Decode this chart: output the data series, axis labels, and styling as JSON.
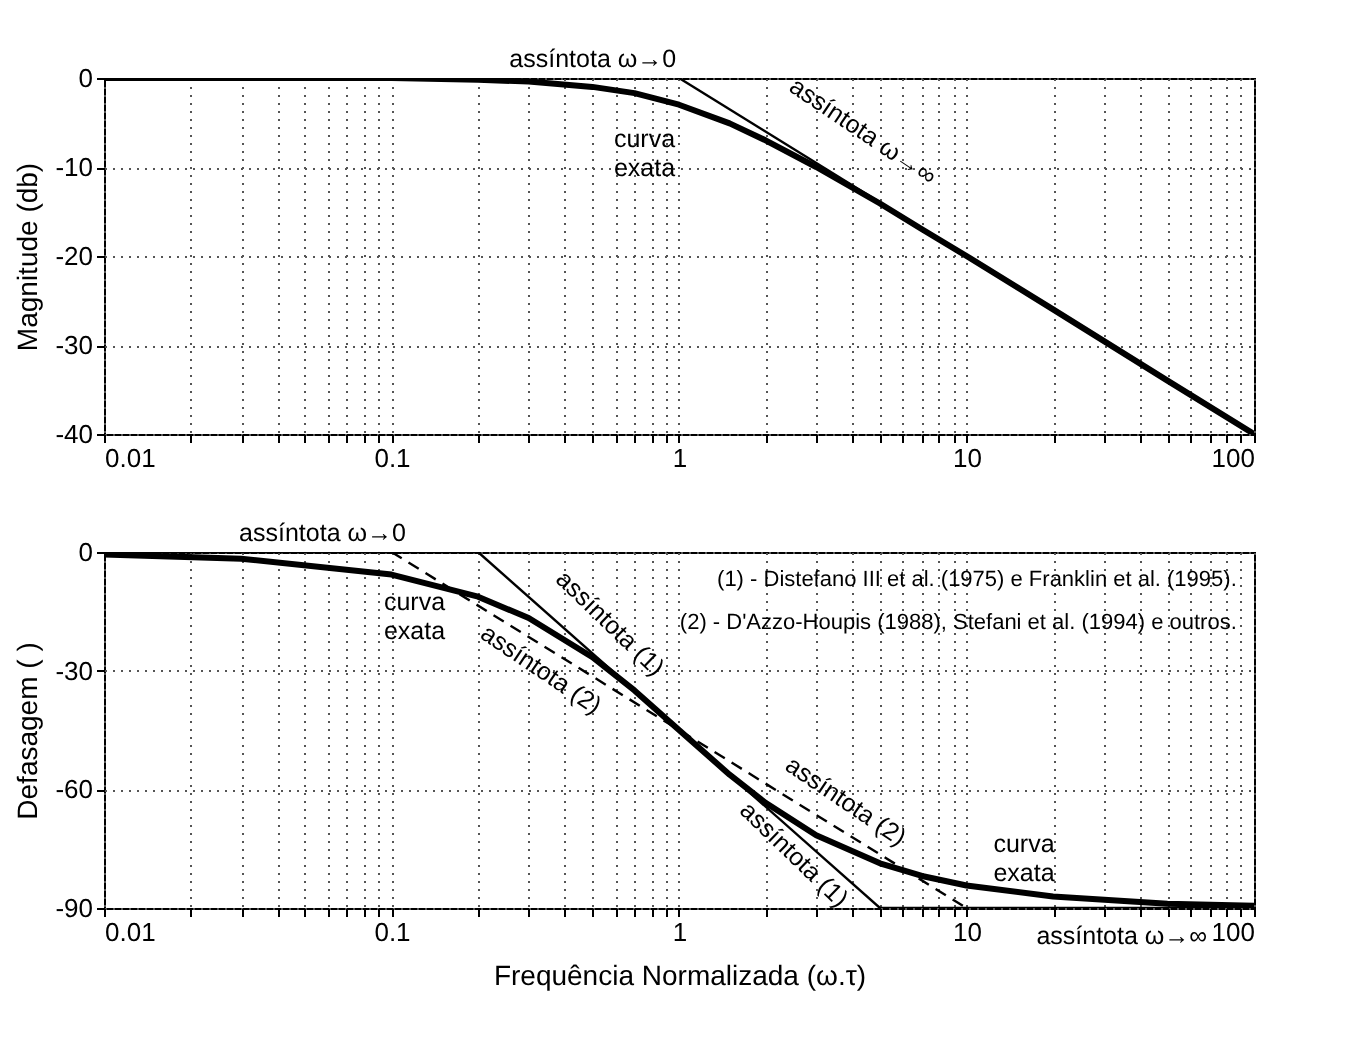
{
  "chart_data": [
    {
      "type": "line",
      "ylabel": "Magnitude  (db)",
      "xlim": [
        0.01,
        100
      ],
      "ylim": [
        -40,
        0
      ],
      "xticks": [
        0.01,
        {
          "value": 0.02,
          "label": null
        },
        {
          "value": 0.03,
          "label": null
        },
        {
          "value": 0.04,
          "label": null
        },
        {
          "value": 0.05,
          "label": null
        },
        {
          "value": 0.06,
          "label": null
        },
        {
          "value": 0.07,
          "label": null
        },
        {
          "value": 0.08,
          "label": null
        },
        {
          "value": 0.09,
          "label": null
        },
        0.1,
        {
          "value": 0.2,
          "label": null
        },
        {
          "value": 0.3,
          "label": null
        },
        {
          "value": 0.4,
          "label": null
        },
        {
          "value": 0.5,
          "label": null
        },
        {
          "value": 0.6,
          "label": null
        },
        {
          "value": 0.7,
          "label": null
        },
        {
          "value": 0.8,
          "label": null
        },
        {
          "value": 0.9,
          "label": null
        },
        1,
        {
          "value": 2,
          "label": null
        },
        {
          "value": 3,
          "label": null
        },
        {
          "value": 4,
          "label": null
        },
        {
          "value": 5,
          "label": null
        },
        {
          "value": 6,
          "label": null
        },
        {
          "value": 7,
          "label": null
        },
        {
          "value": 8,
          "label": null
        },
        {
          "value": 9,
          "label": null
        },
        10,
        {
          "value": 20,
          "label": null
        },
        {
          "value": 30,
          "label": null
        },
        {
          "value": 40,
          "label": null
        },
        {
          "value": 50,
          "label": null
        },
        {
          "value": 60,
          "label": null
        },
        {
          "value": 70,
          "label": null
        },
        {
          "value": 80,
          "label": null
        },
        {
          "value": 90,
          "label": null
        },
        100
      ],
      "yticks": [
        -40,
        -30,
        -20,
        -10,
        0
      ],
      "log": "x",
      "grid": true,
      "marker": "none",
      "series": [
        {
          "color": "#000000",
          "x": [
            0.01,
            0.1,
            0.2,
            0.3,
            0.5,
            0.7,
            1,
            1.5,
            2,
            3,
            5,
            7,
            10,
            20,
            50,
            100
          ],
          "values": [
            0,
            0,
            -0.2,
            -0.4,
            -1,
            -1.7,
            -3,
            -5.1,
            -7,
            -10,
            -14.1,
            -17,
            -20,
            -26,
            -34,
            -40
          ]
        },
        {
          "color": "#000000",
          "x": [
            1,
            100
          ],
          "values": [
            0,
            -40
          ]
        }
      ],
      "annotations": [
        "assíntota ω→0",
        "curva\nexata",
        "assíntota ω→∞"
      ]
    },
    {
      "type": "line",
      "ylabel": "Defasagem  ( )",
      "xlabel": "Frequência Normalizada  (ω.τ)",
      "xlim": [
        0.01,
        100
      ],
      "ylim": [
        -90,
        0
      ],
      "xticks": [
        0.01,
        {
          "value": 0.02,
          "label": null
        },
        {
          "value": 0.03,
          "label": null
        },
        {
          "value": 0.04,
          "label": null
        },
        {
          "value": 0.05,
          "label": null
        },
        {
          "value": 0.06,
          "label": null
        },
        {
          "value": 0.07,
          "label": null
        },
        {
          "value": 0.08,
          "label": null
        },
        {
          "value": 0.09,
          "label": null
        },
        0.1,
        {
          "value": 0.2,
          "label": null
        },
        {
          "value": 0.3,
          "label": null
        },
        {
          "value": 0.4,
          "label": null
        },
        {
          "value": 0.5,
          "label": null
        },
        {
          "value": 0.6,
          "label": null
        },
        {
          "value": 0.7,
          "label": null
        },
        {
          "value": 0.8,
          "label": null
        },
        {
          "value": 0.9,
          "label": null
        },
        1,
        {
          "value": 2,
          "label": null
        },
        {
          "value": 3,
          "label": null
        },
        {
          "value": 4,
          "label": null
        },
        {
          "value": 5,
          "label": null
        },
        {
          "value": 6,
          "label": null
        },
        {
          "value": 7,
          "label": null
        },
        {
          "value": 8,
          "label": null
        },
        {
          "value": 9,
          "label": null
        },
        10,
        {
          "value": 20,
          "label": null
        },
        {
          "value": 30,
          "label": null
        },
        {
          "value": 40,
          "label": null
        },
        {
          "value": 50,
          "label": null
        },
        {
          "value": 60,
          "label": null
        },
        {
          "value": 70,
          "label": null
        },
        {
          "value": 80,
          "label": null
        },
        {
          "value": 90,
          "label": null
        },
        100
      ],
      "yticks": [
        -90,
        -60,
        -30,
        0
      ],
      "log": "x",
      "grid": true,
      "marker": "none",
      "series": [
        {
          "color": "#000000",
          "x": [
            0.01,
            0.03,
            0.1,
            0.2,
            0.3,
            0.5,
            0.7,
            1,
            1.5,
            2,
            3,
            5,
            7,
            10,
            20,
            50,
            100
          ],
          "values": [
            -0.6,
            -1.7,
            -5.7,
            -11.3,
            -16.7,
            -26.6,
            -35,
            -45,
            -56.3,
            -63.4,
            -71.6,
            -78.7,
            -81.9,
            -84.3,
            -87.1,
            -88.9,
            -89.4
          ]
        },
        {
          "color": "#000000",
          "x": [
            0.2,
            5
          ],
          "values": [
            0,
            -90
          ]
        },
        {
          "color": "#000000",
          "x": [
            0.1,
            10
          ],
          "values": [
            0,
            -90
          ],
          "line_style": "dashed"
        },
        {
          "color": "#000000",
          "x": [
            0.01,
            0.2
          ],
          "values": [
            0,
            0
          ]
        },
        {
          "color": "#000000",
          "x": [
            5,
            100
          ],
          "values": [
            -90,
            -90
          ]
        }
      ],
      "annotations": [
        "assíntota ω→0",
        "curva\nexata",
        "assíntota (1)",
        "assíntota (2)",
        "(1) - Distefano III et al. (1975) e Franklin et al. (1995).",
        "(2) - D'Azzo-Houpis (1988), Stefani et al. (1994) e outros.",
        "assíntota (2)",
        "assíntota (1)",
        "curva\nexata",
        "assíntota ω→∞"
      ]
    }
  ]
}
